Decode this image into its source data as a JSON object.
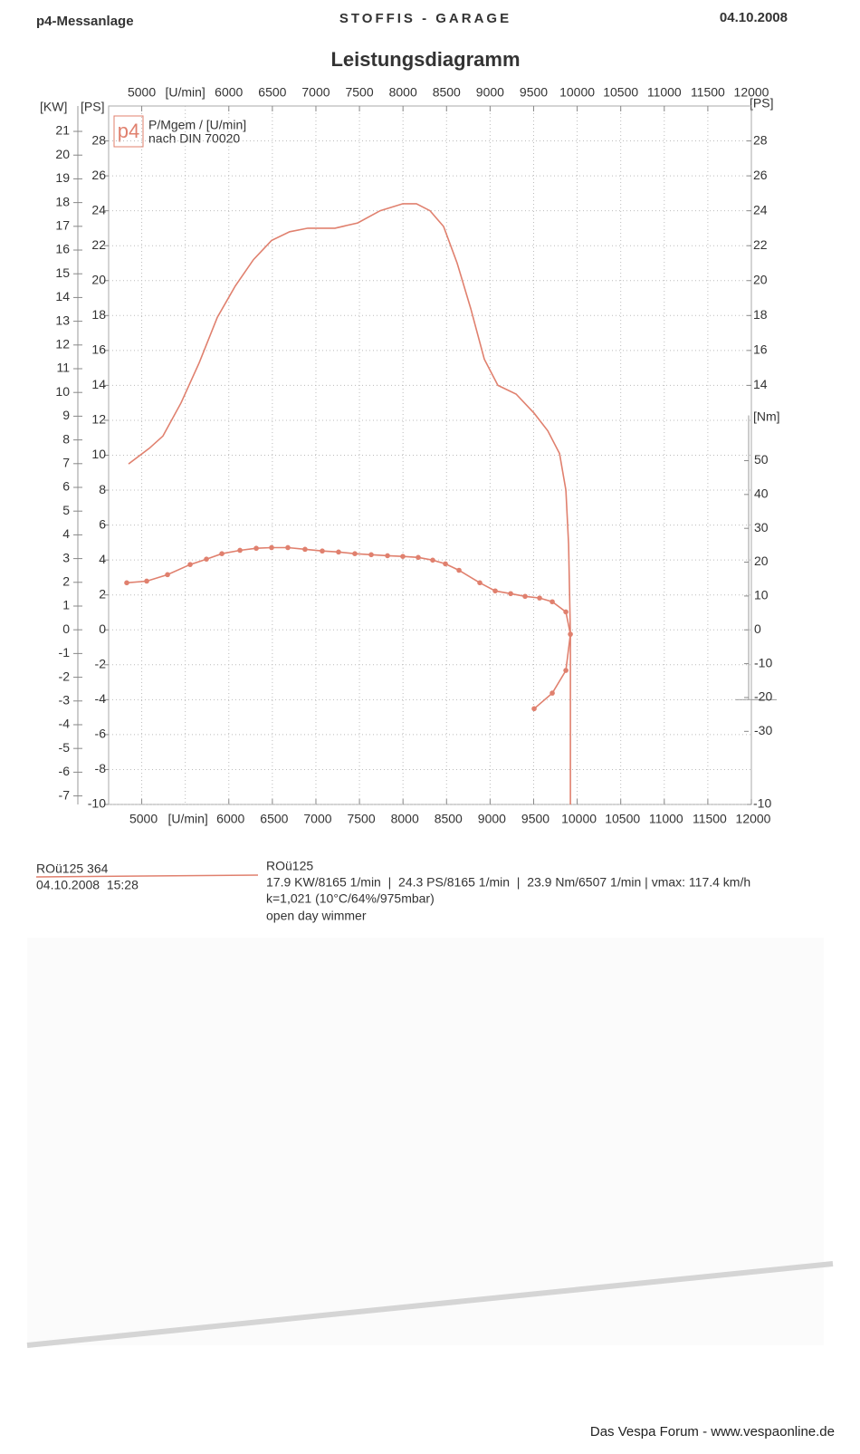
{
  "chart_data": {
    "type": "line",
    "header_left": "p4-Messanlage",
    "header_center": "STOFFIS - GARAGE",
    "header_right": "04.10.2008",
    "title": "Leistungsdiagramm",
    "legend_logo": "p4",
    "legend_lines": [
      "P/Mgem / [U/min]",
      "nach DIN 70020"
    ],
    "x_label": "[U/min]",
    "xlim": [
      4620,
      12000
    ],
    "xticks": [
      5000,
      6000,
      6500,
      7000,
      7500,
      8000,
      8500,
      9000,
      9500,
      10000,
      10500,
      11000,
      11500,
      12000
    ],
    "grid_x": [
      5000,
      5500,
      6000,
      6500,
      7000,
      7500,
      8000,
      8500,
      9000,
      9500,
      10000,
      10500,
      11000,
      11500
    ],
    "y_label": "[PS]",
    "ylim": [
      -10,
      30
    ],
    "yticks": [
      -10,
      -8,
      -6,
      -4,
      -2,
      0,
      2,
      4,
      6,
      8,
      10,
      12,
      14,
      16,
      18,
      20,
      22,
      24,
      26,
      28
    ],
    "grid": true,
    "kw_axis": {
      "label": "[KW]",
      "lim": [
        -7.36,
        22.07
      ],
      "ticks": [
        -7,
        -6,
        -5,
        -4,
        -3,
        -2,
        -1,
        0,
        1,
        2,
        3,
        4,
        5,
        6,
        7,
        8,
        9,
        10,
        11,
        12,
        13,
        14,
        15,
        16,
        17,
        18,
        19,
        20,
        21
      ]
    },
    "right_ps_axis": {
      "label": "[PS]",
      "ticks": [
        -10,
        14,
        16,
        18,
        20,
        22,
        24,
        26,
        28
      ]
    },
    "nm_axis": {
      "label": "[Nm]",
      "lim": [
        -51.6,
        154.8
      ],
      "ticks": [
        -30,
        -20,
        -10,
        0,
        10,
        20,
        30,
        40,
        50
      ]
    },
    "series": [
      {
        "color": "#e0806e",
        "axis": "ps",
        "markers": false,
        "x": [
          4849,
          5088,
          5244,
          5452,
          5660,
          5868,
          6075,
          6283,
          6491,
          6699,
          6907,
          7219,
          7479,
          7738,
          7998,
          8154,
          8310,
          8466,
          8622,
          8778,
          8934,
          9090,
          9298,
          9506,
          9662,
          9797,
          9870,
          9901,
          9922,
          9922
        ],
        "values": [
          9.5,
          10.4,
          11.1,
          13.0,
          15.3,
          17.9,
          19.7,
          21.2,
          22.3,
          22.8,
          23.0,
          23.0,
          23.3,
          24.0,
          24.4,
          24.4,
          24.0,
          23.1,
          21.0,
          18.4,
          15.5,
          14.0,
          13.5,
          12.4,
          11.4,
          10.1,
          8.0,
          4.9,
          -0.3,
          -10
        ]
      },
      {
        "color": "#e0806e",
        "axis": "nm",
        "markers": true,
        "x": [
          4828,
          5057,
          5296,
          5556,
          5743,
          5920,
          6128,
          6315,
          6491,
          6678,
          6875,
          7073,
          7260,
          7447,
          7635,
          7822,
          7998,
          8175,
          8341,
          8487,
          8643,
          8882,
          9059,
          9236,
          9402,
          9568,
          9714,
          9870,
          9922,
          9870,
          9714,
          9506
        ],
        "values": [
          13.9,
          14.4,
          16.3,
          19.3,
          20.9,
          22.5,
          23.5,
          24.1,
          24.3,
          24.3,
          23.8,
          23.3,
          23.0,
          22.5,
          22.2,
          21.9,
          21.7,
          21.4,
          20.6,
          19.5,
          17.6,
          13.9,
          11.5,
          10.7,
          9.9,
          9.4,
          8.3,
          5.3,
          -1.3,
          -12.0,
          -18.7,
          -23.3
        ]
      }
    ]
  },
  "run_info": {
    "id": "ROü125 364",
    "datetime": "04.10.2008  15:28",
    "name": "ROü125",
    "summary": "17.9 KW/8165 1/min  |  24.3 PS/8165 1/min  |  23.9 Nm/6507 1/min | vmax: 117.4 km/h",
    "conditions": "k=1,021 (10°C/64%/975mbar)",
    "note": "open day wimmer"
  },
  "footer": "Das Vespa Forum - www.vespaonline.de"
}
